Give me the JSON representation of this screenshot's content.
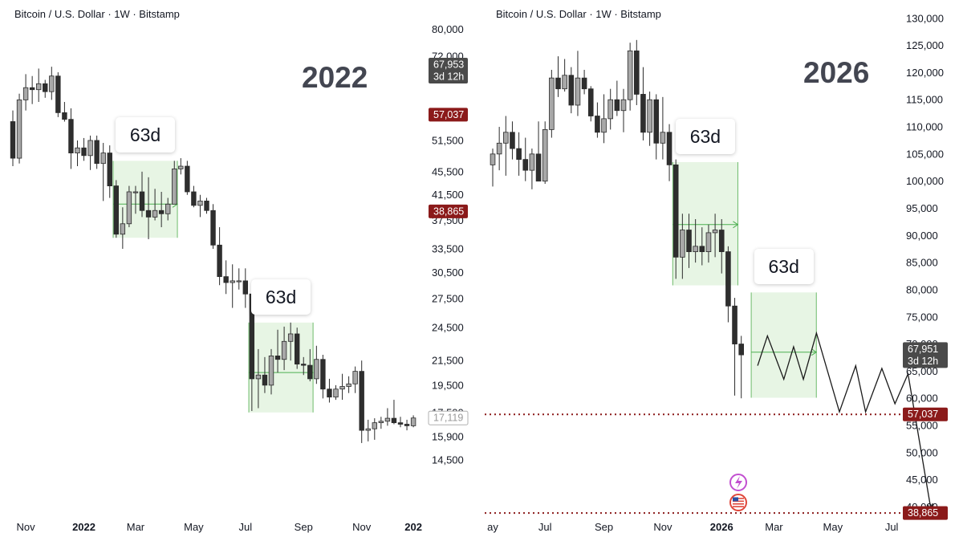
{
  "chart_data": [
    {
      "type": "candlestick",
      "header": "Bitcoin / U.S. Dollar · 1W · Bitstamp",
      "year_label": "2022",
      "yscale": "log",
      "ylim": [
        12800,
        86000
      ],
      "y_ticks": [
        {
          "v": 80000,
          "t": "80,000"
        },
        {
          "v": 72000,
          "t": "72,000"
        },
        {
          "v": 57037,
          "t": "57,037",
          "hidden": true
        },
        {
          "v": 51500,
          "t": "51,500"
        },
        {
          "v": 45500,
          "t": "45,500"
        },
        {
          "v": 41500,
          "t": "41,500"
        },
        {
          "v": 37500,
          "t": "37,500"
        },
        {
          "v": 33500,
          "t": "33,500"
        },
        {
          "v": 30500,
          "t": "30,500"
        },
        {
          "v": 27500,
          "t": "27,500"
        },
        {
          "v": 24500,
          "t": "24,500"
        },
        {
          "v": 21500,
          "t": "21,500"
        },
        {
          "v": 19500,
          "t": "19,500"
        },
        {
          "v": 17500,
          "t": "17,500"
        },
        {
          "v": 15900,
          "t": "15,900"
        },
        {
          "v": 14500,
          "t": "14,500"
        }
      ],
      "x_ticks": [
        {
          "i": 2,
          "t": "Nov",
          "bold": false
        },
        {
          "i": 11,
          "t": "2022",
          "bold": true
        },
        {
          "i": 19,
          "t": "Mar",
          "bold": false
        },
        {
          "i": 28,
          "t": "May",
          "bold": false
        },
        {
          "i": 36,
          "t": "Jul",
          "bold": false
        },
        {
          "i": 45,
          "t": "Sep",
          "bold": false
        },
        {
          "i": 54,
          "t": "Nov",
          "bold": false
        },
        {
          "i": 62,
          "t": "202",
          "bold": true
        }
      ],
      "badges": [
        {
          "v": 67953,
          "lines": [
            "67,953",
            "3d 12h"
          ],
          "bg": "#4a4a4a",
          "fg": "#ffffff"
        },
        {
          "v": 57037,
          "lines": [
            "57,037"
          ],
          "bg": "#8b1a1a",
          "fg": "#ffffff"
        },
        {
          "v": 38865,
          "lines": [
            "38,865"
          ],
          "bg": "#8b1a1a",
          "fg": "#ffffff"
        },
        {
          "v": 17119,
          "lines": [
            "17,119"
          ],
          "bg": "#ffffff",
          "fg": "#999999",
          "border": "#b0b0b0"
        }
      ],
      "boxes": [
        {
          "label": "63d",
          "i0": 16,
          "i1": 25,
          "top": 47500,
          "bottom": 35000,
          "mid": 40000
        },
        {
          "label": "63d",
          "i0": 37,
          "i1": 46,
          "top": 25000,
          "bottom": 17500,
          "mid": 20500
        }
      ],
      "candles": [
        [
          55500,
          58000,
          46500,
          48000
        ],
        [
          48000,
          62000,
          47000,
          60500
        ],
        [
          60500,
          67000,
          58000,
          63500
        ],
        [
          63500,
          66500,
          59500,
          63000
        ],
        [
          63000,
          68500,
          60000,
          64500
        ],
        [
          64500,
          65500,
          61000,
          62500
        ],
        [
          62500,
          69000,
          60500,
          66500
        ],
        [
          66500,
          67500,
          56500,
          57500
        ],
        [
          57500,
          60000,
          55500,
          56000
        ],
        [
          56000,
          58500,
          46000,
          49000
        ],
        [
          49000,
          51500,
          46500,
          50000
        ],
        [
          50000,
          52000,
          47500,
          48500
        ],
        [
          48500,
          52500,
          45800,
          51500
        ],
        [
          51500,
          52500,
          46000,
          47000
        ],
        [
          47000,
          51000,
          40500,
          49000
        ],
        [
          49000,
          50500,
          41000,
          43000
        ],
        [
          43000,
          44000,
          35000,
          35500
        ],
        [
          35500,
          39500,
          33500,
          37000
        ],
        [
          37000,
          43000,
          36500,
          42000
        ],
        [
          42000,
          43000,
          38500,
          42000
        ],
        [
          42000,
          45500,
          38000,
          39000
        ],
        [
          39000,
          44500,
          34800,
          38000
        ],
        [
          38000,
          42500,
          37500,
          39000
        ],
        [
          39000,
          42000,
          36500,
          38500
        ],
        [
          38500,
          41000,
          37500,
          40000
        ],
        [
          40000,
          47500,
          40000,
          46000
        ],
        [
          46000,
          48000,
          45000,
          46500
        ],
        [
          46500,
          47500,
          41500,
          42000
        ],
        [
          42000,
          43000,
          39500,
          39800
        ],
        [
          39800,
          41500,
          38000,
          40500
        ],
        [
          40500,
          41000,
          38500,
          39000
        ],
        [
          39000,
          40000,
          33500,
          34000
        ],
        [
          34000,
          36500,
          29000,
          30000
        ],
        [
          30000,
          32000,
          28000,
          29300
        ],
        [
          29300,
          31500,
          26500,
          29500
        ],
        [
          29500,
          31000,
          28500,
          29500
        ],
        [
          29500,
          31000,
          26500,
          28000
        ],
        [
          28000,
          29000,
          17600,
          20000
        ],
        [
          20000,
          22500,
          17800,
          20300
        ],
        [
          20300,
          21800,
          18900,
          19500
        ],
        [
          19500,
          22500,
          18800,
          21900
        ],
        [
          21900,
          24300,
          20500,
          21600
        ],
        [
          21600,
          24600,
          20700,
          23200
        ],
        [
          23200,
          25000,
          21500,
          23900
        ],
        [
          23900,
          24500,
          20800,
          21200
        ],
        [
          21200,
          21800,
          20300,
          21100
        ],
        [
          21100,
          22500,
          19800,
          20000
        ],
        [
          20000,
          22800,
          19600,
          21600
        ],
        [
          21600,
          22000,
          18500,
          19200
        ],
        [
          19200,
          20000,
          18200,
          18600
        ],
        [
          18600,
          19500,
          18400,
          19200
        ],
        [
          19200,
          20400,
          18400,
          19400
        ],
        [
          19400,
          20200,
          18900,
          19600
        ],
        [
          19600,
          21000,
          18900,
          20600
        ],
        [
          20600,
          21500,
          15500,
          16300
        ],
        [
          16300,
          17000,
          15600,
          16400
        ],
        [
          16400,
          17100,
          15700,
          16800
        ],
        [
          16800,
          17200,
          16400,
          16900
        ],
        [
          16900,
          17800,
          16600,
          17100
        ],
        [
          17100,
          18400,
          16700,
          16800
        ],
        [
          16800,
          17200,
          16500,
          16700
        ],
        [
          16700,
          17000,
          16300,
          16600
        ],
        [
          16600,
          17300,
          16500,
          17119
        ]
      ]
    },
    {
      "type": "candlestick",
      "header": "Bitcoin / U.S. Dollar · 1W · Bitstamp",
      "year_label": "2026",
      "yscale": "linear",
      "ylim": [
        38000,
        131000
      ],
      "y_ticks": [
        {
          "v": 130000,
          "t": "130,000"
        },
        {
          "v": 125000,
          "t": "125,000"
        },
        {
          "v": 120000,
          "t": "120,000"
        },
        {
          "v": 115000,
          "t": "115,000"
        },
        {
          "v": 110000,
          "t": "110,000"
        },
        {
          "v": 105000,
          "t": "105,000"
        },
        {
          "v": 100000,
          "t": "100,000"
        },
        {
          "v": 95000,
          "t": "95,000"
        },
        {
          "v": 90000,
          "t": "90,000"
        },
        {
          "v": 85000,
          "t": "85,000"
        },
        {
          "v": 80000,
          "t": "80,000"
        },
        {
          "v": 75000,
          "t": "75,000"
        },
        {
          "v": 70000,
          "t": "70,000"
        },
        {
          "v": 65000,
          "t": "65,000"
        },
        {
          "v": 60000,
          "t": "60,000"
        },
        {
          "v": 55000,
          "t": "55,000"
        },
        {
          "v": 50000,
          "t": "50,000"
        },
        {
          "v": 45000,
          "t": "45,000"
        },
        {
          "v": 40000,
          "t": "40,000"
        }
      ],
      "x_ticks": [
        {
          "i": 0,
          "t": "ay",
          "bold": false
        },
        {
          "i": 8,
          "t": "Jul",
          "bold": false
        },
        {
          "i": 17,
          "t": "Sep",
          "bold": false
        },
        {
          "i": 26,
          "t": "Nov",
          "bold": false
        },
        {
          "i": 35,
          "t": "2026",
          "bold": true
        },
        {
          "i": 43,
          "t": "Mar",
          "bold": false
        },
        {
          "i": 52,
          "t": "May",
          "bold": false
        },
        {
          "i": 61,
          "t": "Jul",
          "bold": false
        }
      ],
      "badges": [
        {
          "v": 67951,
          "lines": [
            "67,951",
            "3d 12h"
          ],
          "bg": "#4a4a4a",
          "fg": "#ffffff"
        },
        {
          "v": 57037,
          "lines": [
            "57,037"
          ],
          "bg": "#8b1a1a",
          "fg": "#ffffff"
        },
        {
          "v": 38865,
          "lines": [
            "38,865"
          ],
          "bg": "#8b1a1a",
          "fg": "#ffffff"
        }
      ],
      "hlines": [
        {
          "v": 57037,
          "color": "#8b1a1a"
        },
        {
          "v": 38865,
          "color": "#8b1a1a"
        }
      ],
      "boxes": [
        {
          "label": "63d",
          "i0": 28,
          "i1": 37,
          "top": 103500,
          "bottom": 80800,
          "mid": 92000
        },
        {
          "label": "63d",
          "i0": 40,
          "i1": 49,
          "top": 79500,
          "bottom": 60100,
          "mid": 68500
        }
      ],
      "projection": [
        [
          40.5,
          66000
        ],
        [
          42,
          71500
        ],
        [
          44.5,
          63500
        ],
        [
          46,
          69500
        ],
        [
          47.5,
          63500
        ],
        [
          49.5,
          72000
        ],
        [
          53,
          57500
        ],
        [
          55.5,
          66000
        ],
        [
          57,
          57500
        ],
        [
          59.5,
          65500
        ],
        [
          61.5,
          59000
        ],
        [
          63.5,
          64500
        ],
        [
          67,
          39500
        ]
      ],
      "candles": [
        [
          103000,
          106000,
          99000,
          105000
        ],
        [
          105000,
          110000,
          102000,
          107000
        ],
        [
          107000,
          112000,
          101000,
          109000
        ],
        [
          109000,
          111000,
          104000,
          106000
        ],
        [
          106000,
          109000,
          101000,
          104000
        ],
        [
          104000,
          108000,
          100000,
          102000
        ],
        [
          102000,
          106000,
          98500,
          105000
        ],
        [
          105000,
          111000,
          100000,
          100000
        ],
        [
          100000,
          111000,
          99500,
          109500
        ],
        [
          109500,
          120500,
          108000,
          119000
        ],
        [
          119000,
          123000,
          115500,
          117000
        ],
        [
          117000,
          122500,
          116500,
          119500
        ],
        [
          119500,
          121000,
          112500,
          114000
        ],
        [
          114000,
          124000,
          112000,
          119000
        ],
        [
          119000,
          120500,
          116000,
          117000
        ],
        [
          117000,
          117500,
          111000,
          112000
        ],
        [
          112000,
          114500,
          108000,
          109000
        ],
        [
          109000,
          116000,
          107000,
          111500
        ],
        [
          111500,
          117000,
          109500,
          115000
        ],
        [
          115000,
          118500,
          112000,
          113000
        ],
        [
          113000,
          117000,
          109000,
          115000
        ],
        [
          115000,
          125500,
          113000,
          124000
        ],
        [
          124000,
          126000,
          114000,
          116000
        ],
        [
          116000,
          121000,
          107500,
          109000
        ],
        [
          109000,
          116500,
          106500,
          115000
        ],
        [
          115000,
          116000,
          104000,
          107000
        ],
        [
          107000,
          115500,
          104000,
          109000
        ],
        [
          109000,
          110500,
          100000,
          103000
        ],
        [
          103000,
          104000,
          82000,
          86000
        ],
        [
          86000,
          94000,
          82000,
          91000
        ],
        [
          91000,
          94000,
          84000,
          87000
        ],
        [
          87000,
          93000,
          85000,
          88000
        ],
        [
          88000,
          91500,
          84500,
          87000
        ],
        [
          87000,
          92000,
          85000,
          90500
        ],
        [
          90500,
          94000,
          86000,
          91000
        ],
        [
          91000,
          93000,
          83000,
          87000
        ],
        [
          87000,
          88000,
          74000,
          77000
        ],
        [
          77000,
          78500,
          60500,
          70000
        ],
        [
          70000,
          71500,
          60000,
          68000
        ]
      ]
    }
  ]
}
